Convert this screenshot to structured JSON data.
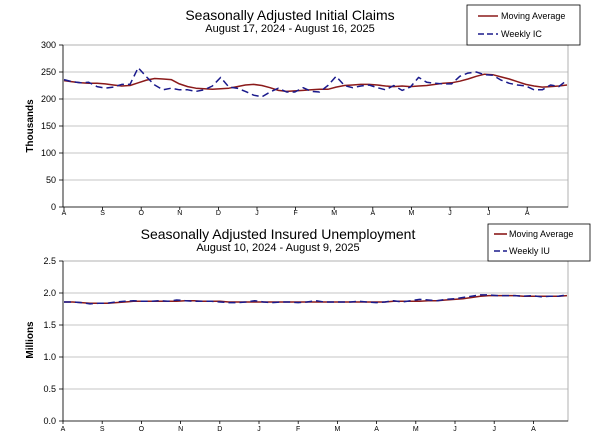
{
  "chart_data": [
    {
      "type": "line",
      "title": "Seasonally Adjusted Initial Claims",
      "subtitle": "August 17, 2024 - August 16, 2025",
      "ylabel": "Thousands",
      "xlabel": "",
      "ylim": [
        0,
        300
      ],
      "yticks": [
        0,
        50,
        100,
        150,
        200,
        250,
        300
      ],
      "x_ticks": [
        "A",
        "S",
        "O",
        "N",
        "D",
        "J",
        "F",
        "M",
        "A",
        "M",
        "J",
        "J",
        "A"
      ],
      "grid": true,
      "legend_position": "top-right",
      "colors": {
        "moving_average": "#8b1a1a",
        "weekly": "#1a1a8c"
      },
      "series": [
        {
          "name": "Moving Average",
          "style": "solid",
          "values": [
            234,
            232,
            230,
            229,
            229,
            228,
            226,
            224,
            225,
            230,
            235,
            238,
            237,
            236,
            228,
            223,
            220,
            219,
            218,
            219,
            220,
            223,
            226,
            227,
            225,
            221,
            216,
            214,
            215,
            216,
            217,
            218,
            218,
            222,
            225,
            226,
            227,
            227,
            226,
            224,
            223,
            224,
            223,
            224,
            225,
            227,
            229,
            230,
            233,
            237,
            242,
            246,
            245,
            241,
            237,
            232,
            227,
            224,
            222,
            223,
            224,
            226
          ]
        },
        {
          "name": "Weekly IC",
          "style": "dashed",
          "values": [
            236,
            232,
            230,
            231,
            223,
            220,
            222,
            227,
            227,
            258,
            241,
            226,
            217,
            220,
            217,
            217,
            214,
            217,
            224,
            240,
            222,
            220,
            214,
            207,
            204,
            213,
            220,
            213,
            213,
            221,
            214,
            213,
            225,
            242,
            225,
            221,
            224,
            226,
            221,
            217,
            225,
            216,
            222,
            240,
            231,
            229,
            228,
            228,
            242,
            248,
            250,
            245,
            244,
            235,
            229,
            226,
            224,
            217,
            217,
            226,
            223,
            235
          ]
        }
      ]
    },
    {
      "type": "line",
      "title": "Seasonally Adjusted Insured Unemployment",
      "subtitle": "August 10, 2024 - August 9, 2025",
      "ylabel": "Millions",
      "xlabel": "",
      "ylim": [
        0,
        2.5
      ],
      "yticks": [
        "0.0",
        "0.5",
        "1.0",
        "1.5",
        "2.0",
        "2.5"
      ],
      "x_ticks": [
        "A",
        "S",
        "O",
        "N",
        "D",
        "J",
        "F",
        "M",
        "A",
        "M",
        "J",
        "J",
        "A"
      ],
      "grid": true,
      "legend_position": "top-right",
      "colors": {
        "moving_average": "#8b1a1a",
        "weekly": "#1a1a8c"
      },
      "series": [
        {
          "name": "Moving Average",
          "style": "solid",
          "values": [
            1.86,
            1.86,
            1.85,
            1.84,
            1.84,
            1.84,
            1.85,
            1.86,
            1.87,
            1.87,
            1.87,
            1.87,
            1.87,
            1.87,
            1.88,
            1.88,
            1.87,
            1.87,
            1.87,
            1.86,
            1.86,
            1.86,
            1.86,
            1.86,
            1.86,
            1.86,
            1.86,
            1.86,
            1.86,
            1.86,
            1.86,
            1.86,
            1.86,
            1.86,
            1.86,
            1.86,
            1.86,
            1.86,
            1.87,
            1.87,
            1.87,
            1.87,
            1.88,
            1.88,
            1.89,
            1.9,
            1.91,
            1.93,
            1.95,
            1.96,
            1.96,
            1.96,
            1.96,
            1.95,
            1.95,
            1.95,
            1.95,
            1.95,
            1.96
          ]
        },
        {
          "name": "Weekly IU",
          "style": "dashed",
          "values": [
            1.86,
            1.86,
            1.85,
            1.83,
            1.84,
            1.84,
            1.86,
            1.87,
            1.88,
            1.87,
            1.87,
            1.88,
            1.87,
            1.89,
            1.88,
            1.87,
            1.87,
            1.87,
            1.86,
            1.85,
            1.85,
            1.86,
            1.88,
            1.86,
            1.85,
            1.86,
            1.86,
            1.85,
            1.86,
            1.88,
            1.86,
            1.86,
            1.86,
            1.86,
            1.87,
            1.86,
            1.85,
            1.86,
            1.88,
            1.86,
            1.88,
            1.9,
            1.89,
            1.88,
            1.9,
            1.91,
            1.93,
            1.95,
            1.97,
            1.97,
            1.96,
            1.96,
            1.96,
            1.95,
            1.96,
            1.94,
            1.95,
            1.95,
            1.97
          ]
        }
      ]
    }
  ]
}
